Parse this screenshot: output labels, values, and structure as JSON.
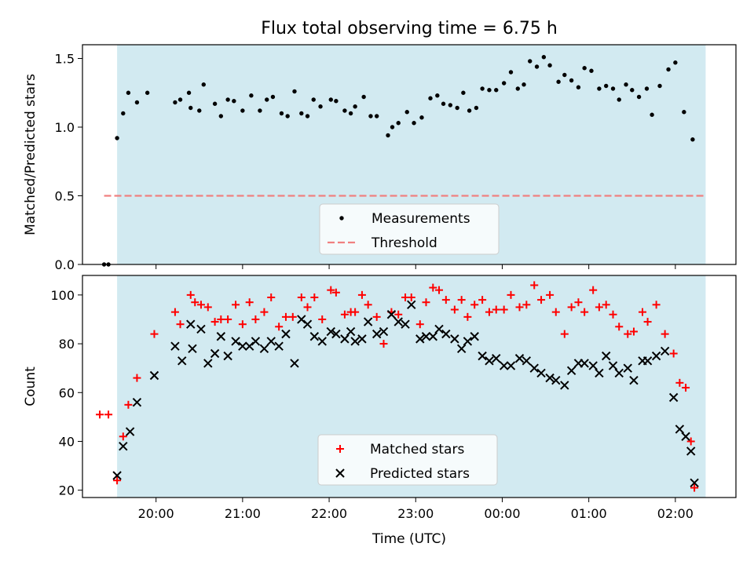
{
  "title": "Flux total observing time = 6.75 h",
  "xlabel": "Time (UTC)",
  "colors": {
    "shade": "#add8e6",
    "measurement": "#000000",
    "threshold": "#f08080",
    "matched": "#ff0000",
    "predicted": "#000000"
  },
  "chart_data": [
    {
      "type": "scatter",
      "ylabel": "Matched/Predicted stars",
      "ylim": [
        0,
        1.6
      ],
      "yticks": [
        0,
        0.5,
        1.0,
        1.5
      ],
      "ytick_labels": [
        "0.0",
        "0.5",
        "1.0",
        "1.5"
      ],
      "xlim": [
        19.15,
        26.7
      ],
      "observing_window": [
        19.55,
        26.35
      ],
      "threshold": {
        "value": 0.5,
        "x_range": [
          19.4,
          26.35
        ]
      },
      "legend": {
        "position": "lower center",
        "entries": [
          "Measurements",
          "Threshold"
        ]
      },
      "series": [
        {
          "name": "Measurements",
          "points": [
            [
              19.4,
              0.0
            ],
            [
              19.45,
              0.0
            ],
            [
              19.55,
              0.92
            ],
            [
              19.62,
              1.1
            ],
            [
              19.68,
              1.25
            ],
            [
              19.78,
              1.18
            ],
            [
              19.9,
              1.25
            ],
            [
              20.22,
              1.18
            ],
            [
              20.28,
              1.2
            ],
            [
              20.38,
              1.25
            ],
            [
              20.4,
              1.14
            ],
            [
              20.5,
              1.12
            ],
            [
              20.55,
              1.31
            ],
            [
              20.68,
              1.17
            ],
            [
              20.75,
              1.08
            ],
            [
              20.83,
              1.2
            ],
            [
              20.9,
              1.19
            ],
            [
              21.0,
              1.12
            ],
            [
              21.1,
              1.23
            ],
            [
              21.2,
              1.12
            ],
            [
              21.28,
              1.2
            ],
            [
              21.35,
              1.22
            ],
            [
              21.45,
              1.1
            ],
            [
              21.52,
              1.08
            ],
            [
              21.6,
              1.26
            ],
            [
              21.68,
              1.1
            ],
            [
              21.75,
              1.08
            ],
            [
              21.82,
              1.2
            ],
            [
              21.9,
              1.15
            ],
            [
              22.02,
              1.2
            ],
            [
              22.08,
              1.19
            ],
            [
              22.18,
              1.12
            ],
            [
              22.25,
              1.1
            ],
            [
              22.3,
              1.15
            ],
            [
              22.4,
              1.22
            ],
            [
              22.48,
              1.08
            ],
            [
              22.55,
              1.08
            ],
            [
              22.68,
              0.94
            ],
            [
              22.73,
              1.0
            ],
            [
              22.8,
              1.03
            ],
            [
              22.9,
              1.11
            ],
            [
              22.98,
              1.03
            ],
            [
              23.07,
              1.07
            ],
            [
              23.17,
              1.21
            ],
            [
              23.25,
              1.23
            ],
            [
              23.32,
              1.17
            ],
            [
              23.4,
              1.16
            ],
            [
              23.48,
              1.14
            ],
            [
              23.55,
              1.25
            ],
            [
              23.62,
              1.12
            ],
            [
              23.7,
              1.14
            ],
            [
              23.77,
              1.28
            ],
            [
              23.85,
              1.27
            ],
            [
              23.93,
              1.27
            ],
            [
              24.02,
              1.32
            ],
            [
              24.1,
              1.4
            ],
            [
              24.18,
              1.28
            ],
            [
              24.25,
              1.31
            ],
            [
              24.32,
              1.48
            ],
            [
              24.4,
              1.44
            ],
            [
              24.48,
              1.51
            ],
            [
              24.55,
              1.45
            ],
            [
              24.65,
              1.33
            ],
            [
              24.72,
              1.38
            ],
            [
              24.8,
              1.34
            ],
            [
              24.88,
              1.29
            ],
            [
              24.95,
              1.43
            ],
            [
              25.03,
              1.41
            ],
            [
              25.12,
              1.28
            ],
            [
              25.2,
              1.3
            ],
            [
              25.28,
              1.28
            ],
            [
              25.35,
              1.2
            ],
            [
              25.43,
              1.31
            ],
            [
              25.5,
              1.27
            ],
            [
              25.58,
              1.22
            ],
            [
              25.67,
              1.28
            ],
            [
              25.73,
              1.09
            ],
            [
              25.82,
              1.3
            ],
            [
              25.92,
              1.42
            ],
            [
              26.0,
              1.47
            ],
            [
              26.1,
              1.11
            ],
            [
              26.2,
              0.91
            ]
          ]
        }
      ]
    },
    {
      "type": "scatter",
      "ylabel": "Count",
      "ylim": [
        17,
        108
      ],
      "yticks": [
        20,
        40,
        60,
        80,
        100
      ],
      "ytick_labels": [
        "20",
        "40",
        "60",
        "80",
        "100"
      ],
      "xlim": [
        19.15,
        26.7
      ],
      "xticks": [
        20,
        21,
        22,
        23,
        24,
        25,
        26
      ],
      "xtick_labels": [
        "20:00",
        "21:00",
        "22:00",
        "23:00",
        "00:00",
        "01:00",
        "02:00"
      ],
      "observing_window": [
        19.55,
        26.35
      ],
      "legend": {
        "position": "lower center",
        "entries": [
          "Matched stars",
          "Predicted stars"
        ]
      },
      "series": [
        {
          "name": "Matched stars",
          "marker": "plus",
          "points": [
            [
              19.35,
              51
            ],
            [
              19.45,
              51
            ],
            [
              19.55,
              24
            ],
            [
              19.62,
              42
            ],
            [
              19.68,
              55
            ],
            [
              19.78,
              66
            ],
            [
              19.98,
              84
            ],
            [
              20.22,
              93
            ],
            [
              20.28,
              88
            ],
            [
              20.4,
              100
            ],
            [
              20.45,
              97
            ],
            [
              20.52,
              96
            ],
            [
              20.6,
              95
            ],
            [
              20.68,
              89
            ],
            [
              20.75,
              90
            ],
            [
              20.83,
              90
            ],
            [
              20.92,
              96
            ],
            [
              21.0,
              88
            ],
            [
              21.08,
              97
            ],
            [
              21.15,
              90
            ],
            [
              21.25,
              93
            ],
            [
              21.33,
              99
            ],
            [
              21.42,
              87
            ],
            [
              21.5,
              91
            ],
            [
              21.58,
              91
            ],
            [
              21.68,
              99
            ],
            [
              21.75,
              95
            ],
            [
              21.83,
              99
            ],
            [
              21.92,
              90
            ],
            [
              22.02,
              102
            ],
            [
              22.08,
              101
            ],
            [
              22.18,
              92
            ],
            [
              22.25,
              93
            ],
            [
              22.3,
              93
            ],
            [
              22.38,
              100
            ],
            [
              22.45,
              96
            ],
            [
              22.55,
              91
            ],
            [
              22.63,
              80
            ],
            [
              22.72,
              93
            ],
            [
              22.8,
              92
            ],
            [
              22.88,
              99
            ],
            [
              22.95,
              99
            ],
            [
              23.05,
              88
            ],
            [
              23.12,
              97
            ],
            [
              23.2,
              103
            ],
            [
              23.27,
              102
            ],
            [
              23.35,
              98
            ],
            [
              23.45,
              94
            ],
            [
              23.53,
              98
            ],
            [
              23.6,
              91
            ],
            [
              23.68,
              96
            ],
            [
              23.77,
              98
            ],
            [
              23.85,
              93
            ],
            [
              23.93,
              94
            ],
            [
              24.02,
              94
            ],
            [
              24.1,
              100
            ],
            [
              24.2,
              95
            ],
            [
              24.28,
              96
            ],
            [
              24.37,
              104
            ],
            [
              24.45,
              98
            ],
            [
              24.55,
              100
            ],
            [
              24.62,
              93
            ],
            [
              24.72,
              84
            ],
            [
              24.8,
              95
            ],
            [
              24.88,
              97
            ],
            [
              24.95,
              93
            ],
            [
              25.05,
              102
            ],
            [
              25.12,
              95
            ],
            [
              25.2,
              96
            ],
            [
              25.28,
              92
            ],
            [
              25.35,
              87
            ],
            [
              25.45,
              84
            ],
            [
              25.52,
              85
            ],
            [
              25.62,
              93
            ],
            [
              25.68,
              89
            ],
            [
              25.78,
              96
            ],
            [
              25.88,
              84
            ],
            [
              25.98,
              76
            ],
            [
              26.05,
              64
            ],
            [
              26.12,
              62
            ],
            [
              26.18,
              40
            ],
            [
              26.22,
              21
            ]
          ]
        },
        {
          "name": "Predicted stars",
          "marker": "x",
          "points": [
            [
              19.55,
              26
            ],
            [
              19.62,
              38
            ],
            [
              19.7,
              44
            ],
            [
              19.78,
              56
            ],
            [
              19.98,
              67
            ],
            [
              20.22,
              79
            ],
            [
              20.3,
              73
            ],
            [
              20.4,
              88
            ],
            [
              20.42,
              78
            ],
            [
              20.52,
              86
            ],
            [
              20.6,
              72
            ],
            [
              20.68,
              76
            ],
            [
              20.75,
              83
            ],
            [
              20.83,
              75
            ],
            [
              20.92,
              81
            ],
            [
              21.0,
              79
            ],
            [
              21.08,
              79
            ],
            [
              21.15,
              81
            ],
            [
              21.25,
              78
            ],
            [
              21.33,
              81
            ],
            [
              21.42,
              79
            ],
            [
              21.5,
              84
            ],
            [
              21.6,
              72
            ],
            [
              21.68,
              90
            ],
            [
              21.75,
              88
            ],
            [
              21.83,
              83
            ],
            [
              21.92,
              81
            ],
            [
              22.02,
              85
            ],
            [
              22.08,
              84
            ],
            [
              22.18,
              82
            ],
            [
              22.25,
              85
            ],
            [
              22.3,
              81
            ],
            [
              22.38,
              82
            ],
            [
              22.45,
              89
            ],
            [
              22.55,
              84
            ],
            [
              22.63,
              85
            ],
            [
              22.72,
              92
            ],
            [
              22.8,
              89
            ],
            [
              22.88,
              88
            ],
            [
              22.95,
              96
            ],
            [
              23.05,
              82
            ],
            [
              23.12,
              83
            ],
            [
              23.2,
              83
            ],
            [
              23.27,
              86
            ],
            [
              23.35,
              84
            ],
            [
              23.45,
              82
            ],
            [
              23.53,
              78
            ],
            [
              23.6,
              81
            ],
            [
              23.68,
              83
            ],
            [
              23.77,
              75
            ],
            [
              23.85,
              73
            ],
            [
              23.93,
              74
            ],
            [
              24.02,
              71
            ],
            [
              24.1,
              71
            ],
            [
              24.2,
              74
            ],
            [
              24.28,
              73
            ],
            [
              24.37,
              70
            ],
            [
              24.45,
              68
            ],
            [
              24.55,
              66
            ],
            [
              24.62,
              65
            ],
            [
              24.72,
              63
            ],
            [
              24.8,
              69
            ],
            [
              24.88,
              72
            ],
            [
              24.95,
              72
            ],
            [
              25.05,
              71
            ],
            [
              25.12,
              68
            ],
            [
              25.2,
              75
            ],
            [
              25.28,
              71
            ],
            [
              25.35,
              68
            ],
            [
              25.45,
              70
            ],
            [
              25.52,
              65
            ],
            [
              25.62,
              73
            ],
            [
              25.68,
              73
            ],
            [
              25.78,
              75
            ],
            [
              25.88,
              77
            ],
            [
              25.98,
              58
            ],
            [
              26.05,
              45
            ],
            [
              26.12,
              42
            ],
            [
              26.18,
              36
            ],
            [
              26.22,
              23
            ]
          ]
        }
      ]
    }
  ]
}
